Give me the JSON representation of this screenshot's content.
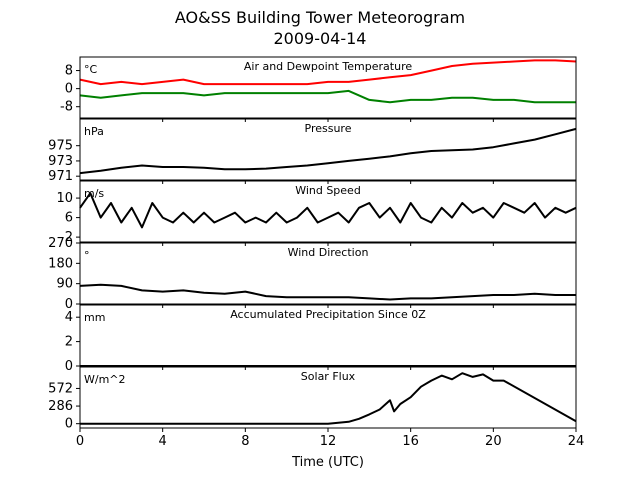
{
  "figure": {
    "title": "AO&SS Building Tower Meteorogram",
    "subtitle": "2009-04-14"
  },
  "chart_data": [
    {
      "type": "line",
      "title": "Air and Dewpoint Temperature",
      "unit_label": "°C",
      "xlabel": "",
      "xlim": [
        0,
        24
      ],
      "ylim": [
        -13,
        14
      ],
      "yticks": [
        -8,
        0,
        8
      ],
      "x": [
        0,
        1,
        2,
        3,
        4,
        5,
        6,
        7,
        8,
        9,
        10,
        11,
        12,
        13,
        14,
        15,
        16,
        17,
        18,
        19,
        20,
        21,
        22,
        23,
        24
      ],
      "series": [
        {
          "color": "#ff0000",
          "values": [
            4,
            2,
            3,
            2,
            3,
            4,
            2,
            2,
            2,
            2,
            2,
            2,
            3,
            3,
            4,
            5,
            6,
            8,
            10,
            11,
            11.5,
            12,
            12.5,
            12.5,
            12
          ]
        },
        {
          "color": "#008000",
          "values": [
            -3,
            -4,
            -3,
            -2,
            -2,
            -2,
            -3,
            -2,
            -2,
            -2,
            -2,
            -2,
            -2,
            -1,
            -5,
            -6,
            -5,
            -5,
            -4,
            -4,
            -5,
            -5,
            -6,
            -6,
            -6
          ]
        }
      ]
    },
    {
      "type": "line",
      "title": "Pressure",
      "unit_label": "hPa",
      "xlabel": "",
      "xlim": [
        0,
        24
      ],
      "ylim": [
        970.5,
        978.5
      ],
      "yticks": [
        971,
        973,
        975
      ],
      "x": [
        0,
        1,
        2,
        3,
        4,
        5,
        6,
        7,
        8,
        9,
        10,
        11,
        12,
        13,
        14,
        15,
        16,
        17,
        18,
        19,
        20,
        21,
        22,
        23,
        24
      ],
      "series": [
        {
          "color": "#000000",
          "values": [
            971.4,
            971.7,
            972.1,
            972.4,
            972.2,
            972.2,
            972.1,
            971.9,
            971.9,
            972.0,
            972.2,
            972.4,
            972.7,
            973.0,
            973.3,
            973.6,
            974.0,
            974.3,
            974.4,
            974.5,
            974.8,
            975.3,
            975.8,
            976.5,
            977.2
          ]
        }
      ]
    },
    {
      "type": "line",
      "title": "Wind Speed",
      "unit_label": "m/s",
      "xlabel": "",
      "xlim": [
        0,
        24
      ],
      "ylim": [
        1,
        13.5
      ],
      "yticks": [
        2,
        6,
        10
      ],
      "x": [
        0,
        0.5,
        1,
        1.5,
        2,
        2.5,
        3,
        3.5,
        4,
        4.5,
        5,
        5.5,
        6,
        6.5,
        7,
        7.5,
        8,
        8.5,
        9,
        9.5,
        10,
        10.5,
        11,
        11.5,
        12,
        12.5,
        13,
        13.5,
        14,
        14.5,
        15,
        15.5,
        16,
        16.5,
        17,
        17.5,
        18,
        18.5,
        19,
        19.5,
        20,
        20.5,
        21,
        21.5,
        22,
        22.5,
        23,
        23.5,
        24
      ],
      "series": [
        {
          "color": "#000000",
          "values": [
            8,
            11,
            6,
            9,
            5,
            8,
            4,
            9,
            6,
            5,
            7,
            5,
            7,
            5,
            6,
            7,
            5,
            6,
            5,
            7,
            5,
            6,
            8,
            5,
            6,
            7,
            5,
            8,
            9,
            6,
            8,
            5,
            9,
            6,
            5,
            8,
            6,
            9,
            7,
            8,
            6,
            9,
            8,
            7,
            9,
            6,
            8,
            7,
            8
          ]
        }
      ]
    },
    {
      "type": "line",
      "title": "Wind Direction",
      "unit_label": "°",
      "xlabel": "",
      "xlim": [
        0,
        24
      ],
      "ylim": [
        0,
        270
      ],
      "yticks": [
        0,
        90,
        180,
        270
      ],
      "x": [
        0,
        1,
        2,
        3,
        4,
        5,
        6,
        7,
        8,
        9,
        10,
        11,
        12,
        13,
        14,
        15,
        16,
        17,
        18,
        19,
        20,
        21,
        22,
        23,
        24
      ],
      "series": [
        {
          "color": "#000000",
          "values": [
            80,
            85,
            80,
            60,
            55,
            60,
            50,
            45,
            55,
            35,
            30,
            30,
            30,
            30,
            25,
            20,
            25,
            25,
            30,
            35,
            40,
            40,
            45,
            40,
            40
          ]
        }
      ]
    },
    {
      "type": "line",
      "title": "Accumulated Precipitation Since 0Z",
      "unit_label": "mm",
      "xlabel": "",
      "xlim": [
        0,
        24
      ],
      "ylim": [
        0,
        5
      ],
      "yticks": [
        0,
        2,
        4
      ],
      "x": [
        0,
        24
      ],
      "series": [
        {
          "color": "#000000",
          "values": [
            0,
            0
          ]
        }
      ]
    },
    {
      "type": "line",
      "title": "Solar Flux",
      "unit_label": "W/m^2",
      "xlabel": "Time (UTC)",
      "xlim": [
        0,
        24
      ],
      "ylim": [
        -70,
        920
      ],
      "yticks": [
        0,
        286,
        572
      ],
      "xticks": [
        0,
        4,
        8,
        12,
        16,
        20,
        24
      ],
      "x": [
        0,
        12,
        13,
        13.5,
        14,
        14.5,
        15,
        15.2,
        15.5,
        16,
        16.5,
        17,
        17.5,
        18,
        18.5,
        19,
        19.5,
        20,
        20.5,
        24
      ],
      "series": [
        {
          "color": "#000000",
          "values": [
            0,
            0,
            30,
            80,
            150,
            230,
            380,
            200,
            320,
            430,
            600,
            700,
            780,
            720,
            820,
            760,
            800,
            700,
            700,
            40
          ]
        }
      ]
    }
  ]
}
